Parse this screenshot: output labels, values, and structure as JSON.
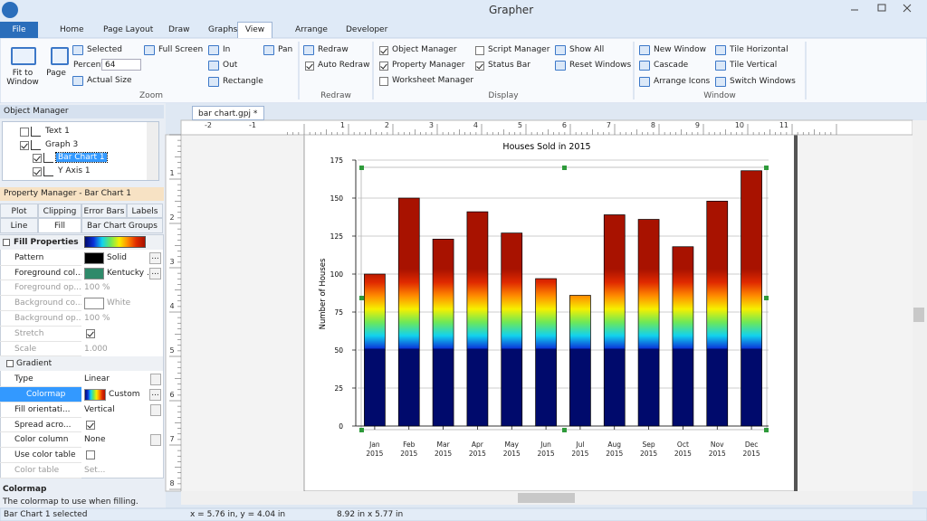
{
  "title_bar": {
    "title": "Grapher"
  },
  "ribbon": {
    "tabs": [
      "File",
      "Home",
      "Page Layout",
      "Draw",
      "Graphs",
      "View",
      "Arrange",
      "Developer"
    ],
    "active_tab": 5,
    "groups": [
      {
        "label": "Zoom",
        "buttons": [
          "Fit to Window",
          "Page",
          "Selected",
          "Full Screen",
          "Actual Size",
          "In",
          "Out",
          "Rectangle",
          "Pan"
        ],
        "percent_label": "Percent",
        "percent_value": "64"
      },
      {
        "label": "Redraw",
        "buttons": [
          "Redraw"
        ],
        "toggles": [
          {
            "label": "Auto Redraw",
            "checked": true
          }
        ]
      },
      {
        "label": "Display",
        "toggles": [
          {
            "label": "Object Manager",
            "checked": true
          },
          {
            "label": "Property Manager",
            "checked": true
          },
          {
            "label": "Worksheet Manager",
            "checked": false
          },
          {
            "label": "Script Manager",
            "checked": false
          },
          {
            "label": "Status Bar",
            "checked": true
          }
        ],
        "buttons": [
          "Show All",
          "Reset Windows"
        ]
      },
      {
        "label": "Window",
        "buttons": [
          "New Window",
          "Cascade",
          "Arrange Icons",
          "Tile Horizontal",
          "Tile Vertical",
          "Switch Windows"
        ]
      }
    ]
  },
  "object_manager": {
    "title": "Object Manager",
    "tree": [
      {
        "label": "Text 1",
        "level": 0,
        "checked": false
      },
      {
        "label": "Graph 3",
        "level": 0,
        "checked": true
      },
      {
        "label": "Bar Chart 1",
        "level": 1,
        "checked": true,
        "selected": true
      },
      {
        "label": "Y Axis 1",
        "level": 1,
        "checked": true
      }
    ]
  },
  "property_manager": {
    "title": "Property Manager - Bar Chart 1",
    "tabs_top": [
      "Plot",
      "Clipping",
      "Error Bars",
      "Labels"
    ],
    "tabs_bottom": [
      "Line",
      "Fill",
      "Bar Chart Groups"
    ],
    "active_tab": 1,
    "rows": [
      {
        "label": "Fill Properties",
        "section": true
      },
      {
        "label": "Pattern",
        "swatch": "#000000",
        "value": "Solid",
        "button": "..."
      },
      {
        "label": "Foreground col...",
        "swatch": "#2f8a6a",
        "value": "Kentucky ...",
        "button": "..."
      },
      {
        "label": "Foreground op...",
        "value": "100 %",
        "disabled": true
      },
      {
        "label": "Background co...",
        "swatch": "#ffffff",
        "value": "White",
        "disabled": true
      },
      {
        "label": "Background op...",
        "value": "100 %",
        "disabled": true
      },
      {
        "label": "Stretch",
        "checked": true,
        "disabled": true
      },
      {
        "label": "Scale",
        "value": "1.000",
        "disabled": true
      },
      {
        "label": "Gradient",
        "section": true
      },
      {
        "label": "Type",
        "value": "Linear",
        "dropdown": true
      },
      {
        "label": "Colormap",
        "value": "Custom",
        "button": "...",
        "selected": true,
        "gradient_swatch": true
      },
      {
        "label": "Fill orientati...",
        "value": "Vertical",
        "dropdown": true
      },
      {
        "label": "Spread acro...",
        "checked": true
      },
      {
        "label": "Color column",
        "value": "None",
        "dropdown": true
      },
      {
        "label": "Use color table",
        "checked": false
      },
      {
        "label": "Color table",
        "value": "Set...",
        "disabled": true
      }
    ]
  },
  "help": {
    "title": "Colormap",
    "text": "The colormap to use when filling."
  },
  "document_tab": "bar chart.gpj *",
  "rulers": {
    "top": [
      -2,
      -1,
      1,
      2,
      3,
      4,
      5,
      6,
      7,
      8,
      9,
      10,
      11
    ],
    "left": [
      1,
      2,
      3,
      4,
      5,
      6,
      7,
      8
    ]
  },
  "status_bar": [
    "Bar Chart 1 selected",
    "x = 5.76 in, y = 4.04 in",
    "8.92 in x 5.77 in"
  ],
  "chart_data": {
    "type": "bar",
    "title": "Houses Sold in 2015",
    "y_label": "Number of Houses",
    "categories": [
      "Jan 2015",
      "Feb 2015",
      "Mar 2015",
      "Apr 2015",
      "May 2015",
      "Jun 2015",
      "Jul 2015",
      "Aug 2015",
      "Sep 2015",
      "Oct 2015",
      "Nov 2015",
      "Dec 2015"
    ],
    "values": [
      100,
      150,
      123,
      141,
      127,
      97,
      86,
      139,
      136,
      118,
      148,
      168
    ],
    "ylim": [
      0,
      175
    ],
    "yticks": [
      0,
      25,
      50,
      75,
      100,
      125,
      150,
      175
    ],
    "grid": true,
    "colormap": [
      "#000a6c",
      "#0a30d8",
      "#12d2ee",
      "#6ee858",
      "#f6f000",
      "#ff8a00",
      "#e02a00",
      "#a81200"
    ]
  }
}
